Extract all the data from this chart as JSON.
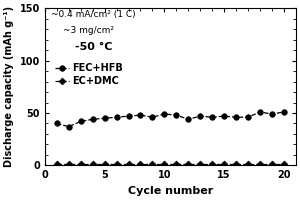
{
  "annotation_line1": "~0.4 mA/cm² (1 C)",
  "annotation_line2": "~3 mg/cm²",
  "annotation_line3": "-50 °C",
  "xlabel": "Cycle number",
  "ylabel": "Discharge capacity (mAh g⁻¹)",
  "xlim": [
    0,
    21
  ],
  "ylim": [
    0,
    150
  ],
  "yticks": [
    0,
    50,
    100,
    150
  ],
  "xticks": [
    0,
    5,
    10,
    15,
    20
  ],
  "fec_hfb_cycles": [
    1,
    2,
    3,
    4,
    5,
    6,
    7,
    8,
    9,
    10,
    11,
    12,
    13,
    14,
    15,
    16,
    17,
    18,
    19,
    20
  ],
  "fec_hfb_values": [
    40,
    37,
    42,
    44,
    45,
    46,
    47,
    48,
    46,
    49,
    48,
    44,
    47,
    46,
    47,
    46,
    46,
    51,
    49,
    51
  ],
  "ec_dmc_cycles": [
    1,
    2,
    3,
    4,
    5,
    6,
    7,
    8,
    9,
    10,
    11,
    12,
    13,
    14,
    15,
    16,
    17,
    18,
    19,
    20
  ],
  "ec_dmc_values": [
    1,
    1,
    1,
    1,
    1,
    1,
    1,
    1,
    1,
    1,
    1,
    1,
    1,
    1,
    1,
    1,
    1,
    1,
    1,
    1
  ],
  "fec_color": "#000000",
  "ec_color": "#000000",
  "legend_fec": "FEC+HFB",
  "legend_ec": "EC+DMC",
  "background_color": "#ffffff"
}
